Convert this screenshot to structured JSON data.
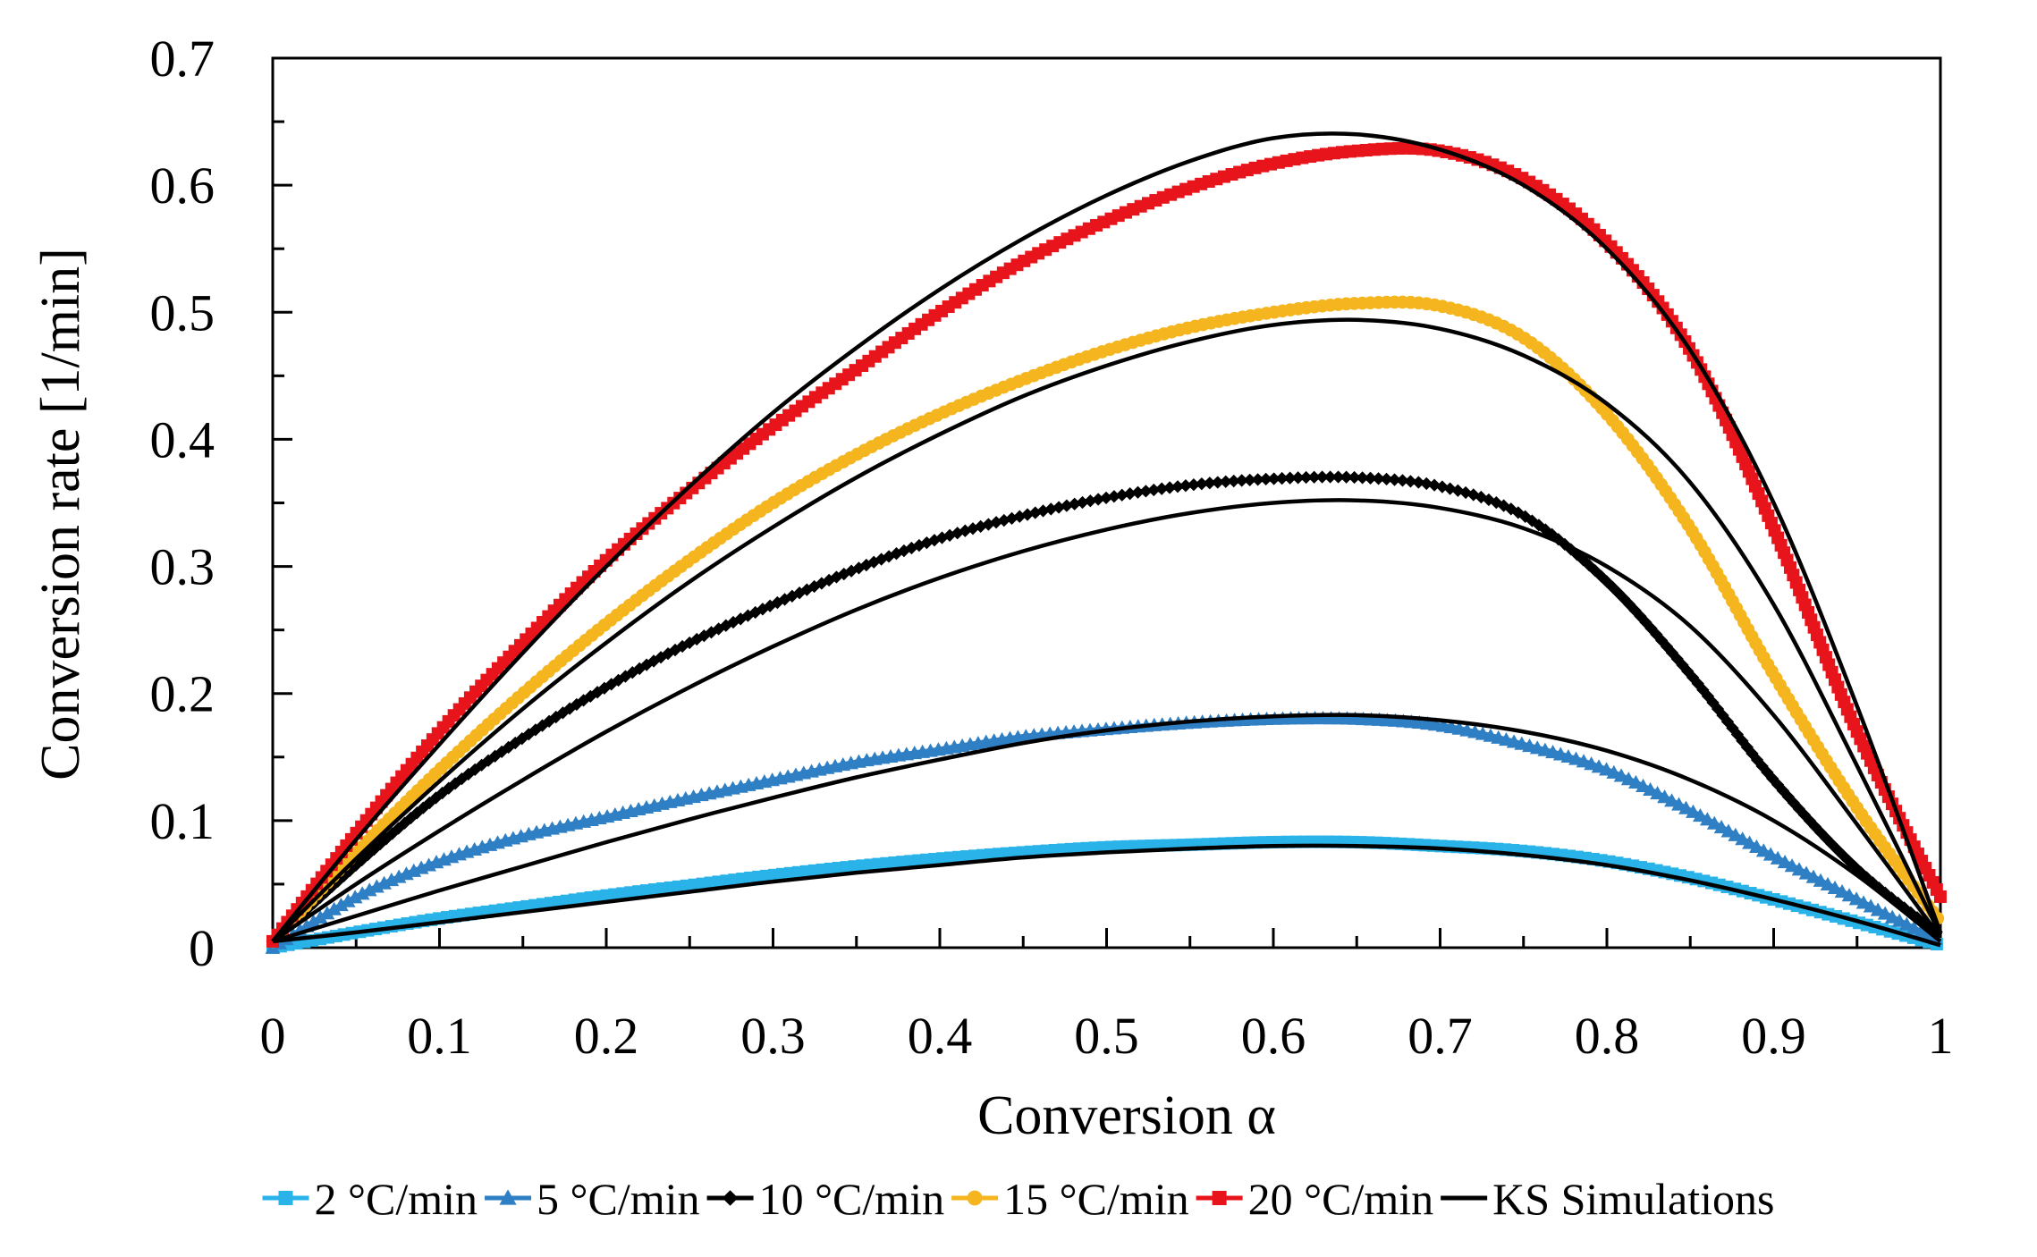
{
  "chart_data": {
    "type": "line",
    "xlabel": "Conversion α",
    "ylabel": "Conversion rate [1/min]",
    "xlim": [
      0,
      1
    ],
    "ylim": [
      0,
      0.7
    ],
    "x_ticks": [
      "0",
      "0.1",
      "0.2",
      "0.3",
      "0.4",
      "0.5",
      "0.6",
      "0.7",
      "0.8",
      "0.9",
      "1"
    ],
    "y_ticks": [
      "0",
      "0.1",
      "0.2",
      "0.3",
      "0.4",
      "0.5",
      "0.6",
      "0.7"
    ],
    "x_minor_step": 0.05,
    "y_minor_step": 0.05,
    "grid": false,
    "legend_position": "bottom",
    "series": [
      {
        "name": "2 °C/min",
        "color": "#29b3e8",
        "marker": "square",
        "points": [
          [
            0,
            0
          ],
          [
            0.05,
            0.012
          ],
          [
            0.1,
            0.023
          ],
          [
            0.15,
            0.032
          ],
          [
            0.2,
            0.041
          ],
          [
            0.25,
            0.049
          ],
          [
            0.3,
            0.057
          ],
          [
            0.35,
            0.064
          ],
          [
            0.4,
            0.07
          ],
          [
            0.45,
            0.075
          ],
          [
            0.5,
            0.079
          ],
          [
            0.55,
            0.081
          ],
          [
            0.6,
            0.083
          ],
          [
            0.65,
            0.083
          ],
          [
            0.7,
            0.08
          ],
          [
            0.75,
            0.076
          ],
          [
            0.8,
            0.068
          ],
          [
            0.85,
            0.055
          ],
          [
            0.9,
            0.038
          ],
          [
            0.95,
            0.02
          ],
          [
            1,
            0.002
          ]
        ]
      },
      {
        "name": "5 °C/min",
        "color": "#2f7fc4",
        "marker": "triangle",
        "points": [
          [
            0,
            0
          ],
          [
            0.05,
            0.04
          ],
          [
            0.1,
            0.068
          ],
          [
            0.15,
            0.088
          ],
          [
            0.2,
            0.103
          ],
          [
            0.25,
            0.118
          ],
          [
            0.3,
            0.132
          ],
          [
            0.35,
            0.146
          ],
          [
            0.4,
            0.156
          ],
          [
            0.45,
            0.166
          ],
          [
            0.5,
            0.172
          ],
          [
            0.55,
            0.177
          ],
          [
            0.6,
            0.18
          ],
          [
            0.65,
            0.18
          ],
          [
            0.7,
            0.175
          ],
          [
            0.75,
            0.16
          ],
          [
            0.8,
            0.14
          ],
          [
            0.85,
            0.108
          ],
          [
            0.9,
            0.072
          ],
          [
            0.95,
            0.038
          ],
          [
            1,
            0.005
          ]
        ]
      },
      {
        "name": "10 °C/min",
        "color": "#000000",
        "marker": "diamond",
        "points": [
          [
            0,
            0.005
          ],
          [
            0.05,
            0.065
          ],
          [
            0.1,
            0.12
          ],
          [
            0.15,
            0.165
          ],
          [
            0.2,
            0.205
          ],
          [
            0.25,
            0.24
          ],
          [
            0.3,
            0.27
          ],
          [
            0.35,
            0.298
          ],
          [
            0.4,
            0.322
          ],
          [
            0.45,
            0.34
          ],
          [
            0.5,
            0.354
          ],
          [
            0.55,
            0.364
          ],
          [
            0.6,
            0.369
          ],
          [
            0.65,
            0.37
          ],
          [
            0.7,
            0.363
          ],
          [
            0.75,
            0.34
          ],
          [
            0.8,
            0.288
          ],
          [
            0.85,
            0.215
          ],
          [
            0.9,
            0.132
          ],
          [
            0.95,
            0.062
          ],
          [
            1,
            0.01
          ]
        ]
      },
      {
        "name": "15 °C/min",
        "color": "#f5b51e",
        "marker": "circle",
        "points": [
          [
            0,
            0.005
          ],
          [
            0.05,
            0.075
          ],
          [
            0.1,
            0.14
          ],
          [
            0.15,
            0.2
          ],
          [
            0.2,
            0.255
          ],
          [
            0.25,
            0.305
          ],
          [
            0.3,
            0.35
          ],
          [
            0.35,
            0.388
          ],
          [
            0.4,
            0.42
          ],
          [
            0.45,
            0.447
          ],
          [
            0.5,
            0.47
          ],
          [
            0.55,
            0.488
          ],
          [
            0.6,
            0.5
          ],
          [
            0.65,
            0.507
          ],
          [
            0.7,
            0.505
          ],
          [
            0.75,
            0.48
          ],
          [
            0.8,
            0.42
          ],
          [
            0.85,
            0.33
          ],
          [
            0.9,
            0.215
          ],
          [
            0.95,
            0.11
          ],
          [
            1,
            0.02
          ]
        ]
      },
      {
        "name": "20 °C/min",
        "color": "#e8141b",
        "marker": "square",
        "points": [
          [
            0,
            0.005
          ],
          [
            0.05,
            0.09
          ],
          [
            0.1,
            0.17
          ],
          [
            0.15,
            0.24
          ],
          [
            0.2,
            0.305
          ],
          [
            0.25,
            0.36
          ],
          [
            0.3,
            0.41
          ],
          [
            0.35,
            0.455
          ],
          [
            0.4,
            0.5
          ],
          [
            0.45,
            0.54
          ],
          [
            0.5,
            0.572
          ],
          [
            0.55,
            0.598
          ],
          [
            0.6,
            0.617
          ],
          [
            0.65,
            0.627
          ],
          [
            0.7,
            0.627
          ],
          [
            0.75,
            0.605
          ],
          [
            0.8,
            0.555
          ],
          [
            0.85,
            0.47
          ],
          [
            0.9,
            0.33
          ],
          [
            0.95,
            0.17
          ],
          [
            1,
            0.04
          ]
        ]
      },
      {
        "name": "KS Simulations",
        "color": "#000000",
        "marker": "none",
        "curves": [
          [
            [
              0,
              0.005
            ],
            [
              0.05,
              0.012
            ],
            [
              0.1,
              0.02
            ],
            [
              0.15,
              0.028
            ],
            [
              0.2,
              0.036
            ],
            [
              0.25,
              0.044
            ],
            [
              0.3,
              0.052
            ],
            [
              0.35,
              0.059
            ],
            [
              0.4,
              0.065
            ],
            [
              0.45,
              0.071
            ],
            [
              0.5,
              0.075
            ],
            [
              0.55,
              0.078
            ],
            [
              0.6,
              0.08
            ],
            [
              0.65,
              0.08
            ],
            [
              0.7,
              0.078
            ],
            [
              0.75,
              0.073
            ],
            [
              0.8,
              0.065
            ],
            [
              0.85,
              0.053
            ],
            [
              0.9,
              0.038
            ],
            [
              0.95,
              0.021
            ],
            [
              1,
              0.002
            ]
          ],
          [
            [
              0,
              0.005
            ],
            [
              0.05,
              0.025
            ],
            [
              0.1,
              0.045
            ],
            [
              0.15,
              0.064
            ],
            [
              0.2,
              0.083
            ],
            [
              0.25,
              0.101
            ],
            [
              0.3,
              0.118
            ],
            [
              0.35,
              0.134
            ],
            [
              0.4,
              0.148
            ],
            [
              0.45,
              0.161
            ],
            [
              0.5,
              0.171
            ],
            [
              0.55,
              0.178
            ],
            [
              0.6,
              0.182
            ],
            [
              0.65,
              0.183
            ],
            [
              0.7,
              0.179
            ],
            [
              0.75,
              0.17
            ],
            [
              0.8,
              0.155
            ],
            [
              0.85,
              0.132
            ],
            [
              0.9,
              0.1
            ],
            [
              0.95,
              0.057
            ],
            [
              1,
              0.005
            ]
          ],
          [
            [
              0,
              0.005
            ],
            [
              0.05,
              0.05
            ],
            [
              0.1,
              0.092
            ],
            [
              0.15,
              0.132
            ],
            [
              0.2,
              0.17
            ],
            [
              0.25,
              0.205
            ],
            [
              0.3,
              0.237
            ],
            [
              0.35,
              0.266
            ],
            [
              0.4,
              0.291
            ],
            [
              0.45,
              0.312
            ],
            [
              0.5,
              0.329
            ],
            [
              0.55,
              0.342
            ],
            [
              0.6,
              0.35
            ],
            [
              0.65,
              0.352
            ],
            [
              0.7,
              0.346
            ],
            [
              0.75,
              0.33
            ],
            [
              0.8,
              0.3
            ],
            [
              0.85,
              0.253
            ],
            [
              0.9,
              0.183
            ],
            [
              0.95,
              0.097
            ],
            [
              1,
              0.008
            ]
          ],
          [
            [
              0,
              0.005
            ],
            [
              0.05,
              0.07
            ],
            [
              0.1,
              0.131
            ],
            [
              0.15,
              0.188
            ],
            [
              0.2,
              0.24
            ],
            [
              0.25,
              0.288
            ],
            [
              0.3,
              0.331
            ],
            [
              0.35,
              0.37
            ],
            [
              0.4,
              0.404
            ],
            [
              0.45,
              0.434
            ],
            [
              0.5,
              0.458
            ],
            [
              0.55,
              0.477
            ],
            [
              0.6,
              0.49
            ],
            [
              0.65,
              0.494
            ],
            [
              0.7,
              0.487
            ],
            [
              0.75,
              0.466
            ],
            [
              0.8,
              0.428
            ],
            [
              0.85,
              0.366
            ],
            [
              0.9,
              0.27
            ],
            [
              0.95,
              0.143
            ],
            [
              1,
              0.01
            ]
          ],
          [
            [
              0,
              0.005
            ],
            [
              0.05,
              0.085
            ],
            [
              0.1,
              0.16
            ],
            [
              0.15,
              0.232
            ],
            [
              0.2,
              0.3
            ],
            [
              0.25,
              0.363
            ],
            [
              0.3,
              0.421
            ],
            [
              0.35,
              0.472
            ],
            [
              0.4,
              0.518
            ],
            [
              0.45,
              0.558
            ],
            [
              0.5,
              0.592
            ],
            [
              0.55,
              0.619
            ],
            [
              0.6,
              0.637
            ],
            [
              0.65,
              0.64
            ],
            [
              0.7,
              0.628
            ],
            [
              0.75,
              0.6
            ],
            [
              0.8,
              0.55
            ],
            [
              0.85,
              0.47
            ],
            [
              0.9,
              0.35
            ],
            [
              0.95,
              0.19
            ],
            [
              1,
              0.012
            ]
          ]
        ]
      }
    ]
  }
}
